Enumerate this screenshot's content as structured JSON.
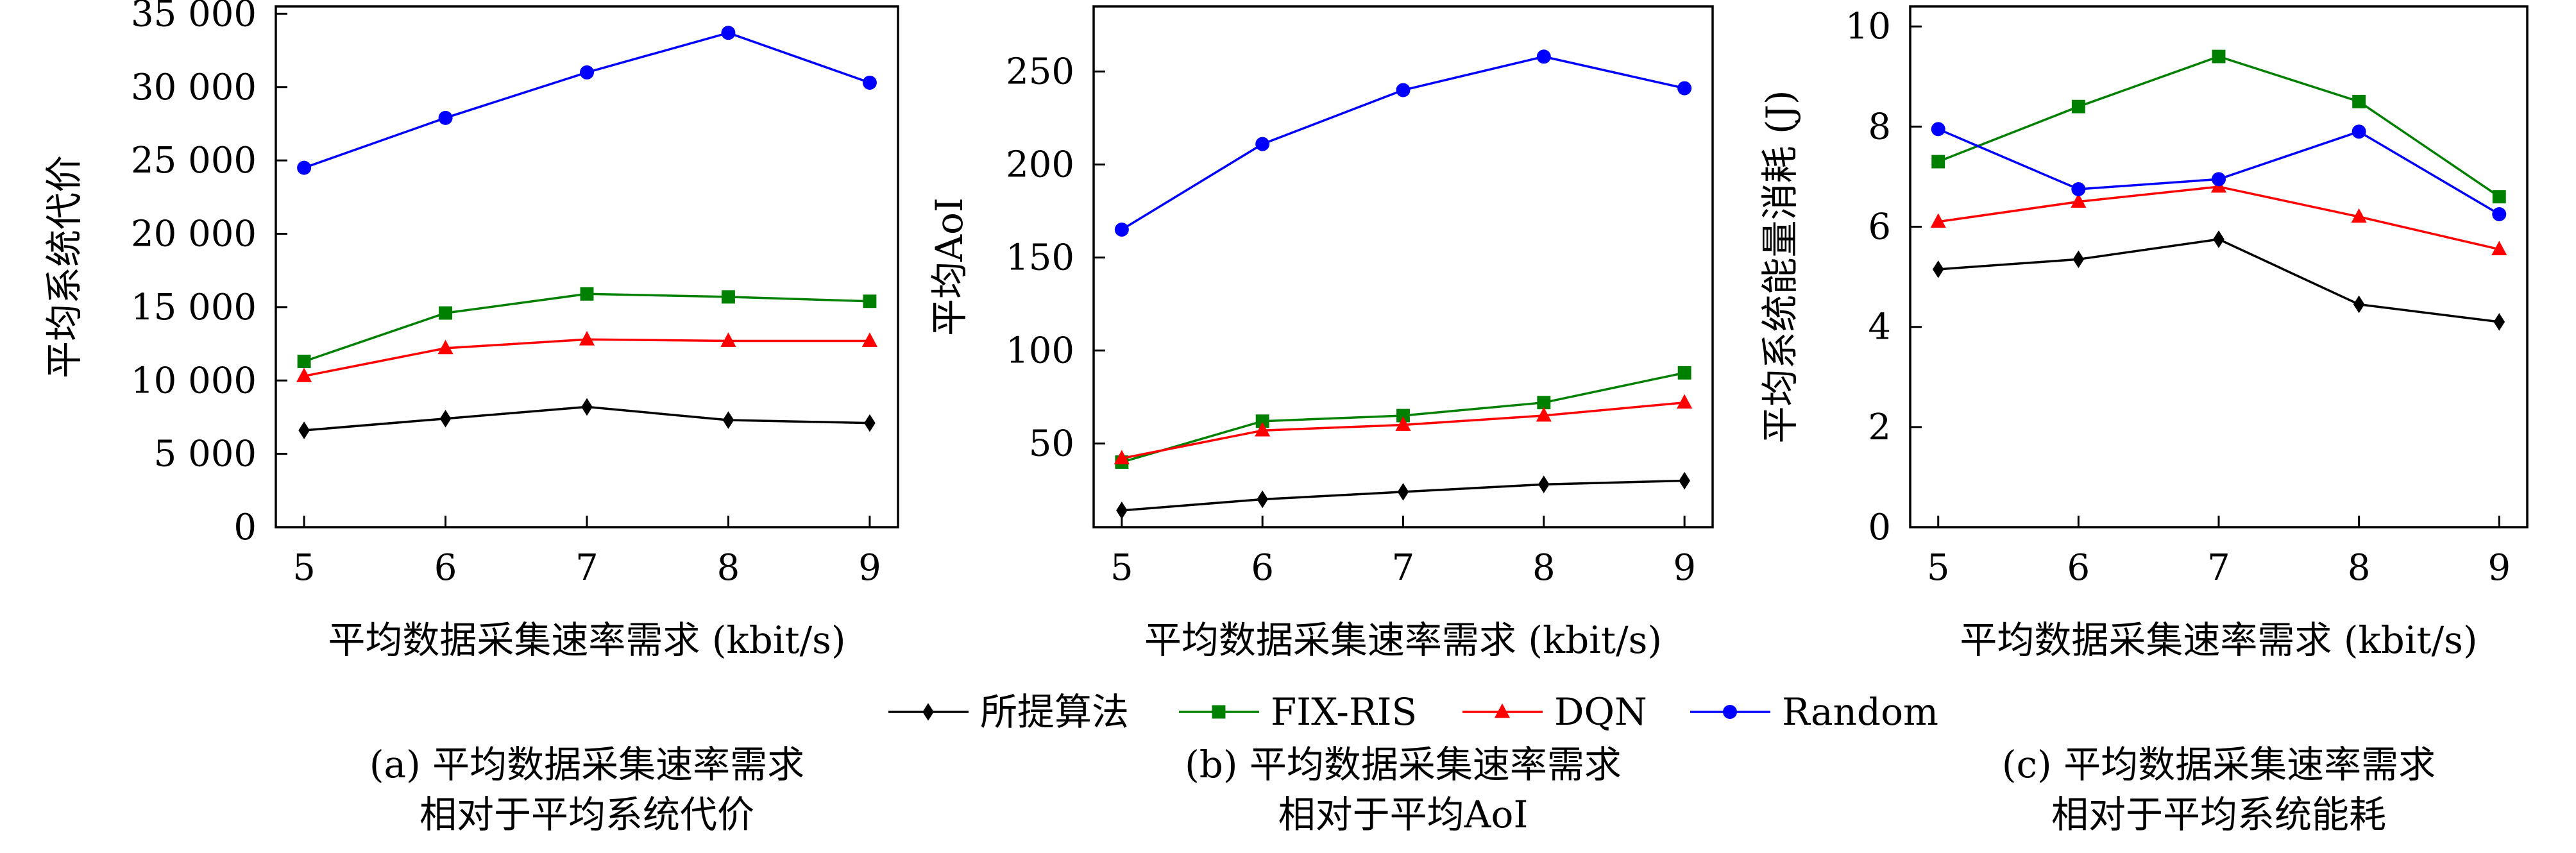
{
  "legend": {
    "placement": "bottom-center",
    "entries": [
      {
        "name": "所提算法",
        "color": "#000000",
        "marker": "diamond"
      },
      {
        "name": "FIX-RIS",
        "color": "#008000",
        "marker": "square"
      },
      {
        "name": "DQN",
        "color": "#ff0000",
        "marker": "triangle"
      },
      {
        "name": "Random",
        "color": "#0000ff",
        "marker": "circle"
      }
    ]
  },
  "chart_data": [
    {
      "type": "line",
      "caption_line1": "(a) 平均数据采集速率需求",
      "caption_line2": "相对于平均系统代价",
      "xlabel": "平均数据采集速率需求 (kbit/s)",
      "ylabel": "平均系统代价",
      "x": [
        5,
        6,
        7,
        8,
        9
      ],
      "xlim": [
        4.8,
        9.2
      ],
      "ylim": [
        0,
        35500
      ],
      "yticks": [
        0,
        5000,
        10000,
        15000,
        20000,
        25000,
        30000,
        35000
      ],
      "ytick_labels": [
        "0",
        "5 000",
        "10 000",
        "15 000",
        "20 000",
        "25 000",
        "30 000",
        "35 000"
      ],
      "xtick_labels": [
        "5",
        "6",
        "7",
        "8",
        "9"
      ],
      "grid": false,
      "series": [
        {
          "name": "所提算法",
          "values": [
            6600,
            7400,
            8200,
            7300,
            7100
          ]
        },
        {
          "name": "FIX-RIS",
          "values": [
            11300,
            14600,
            15900,
            15700,
            15400
          ]
        },
        {
          "name": "DQN",
          "values": [
            10300,
            12200,
            12800,
            12700,
            12700
          ]
        },
        {
          "name": "Random",
          "values": [
            24500,
            27900,
            31000,
            33700,
            30300
          ]
        }
      ]
    },
    {
      "type": "line",
      "caption_line1": "(b) 平均数据采集速率需求",
      "caption_line2": "相对于平均AoI",
      "xlabel": "平均数据采集速率需求 (kbit/s)",
      "ylabel": "平均AoI",
      "x": [
        5,
        6,
        7,
        8,
        9
      ],
      "xlim": [
        4.8,
        9.2
      ],
      "ylim": [
        5,
        285
      ],
      "yticks": [
        50,
        100,
        150,
        200,
        250
      ],
      "ytick_labels": [
        "50",
        "100",
        "150",
        "200",
        "250"
      ],
      "xtick_labels": [
        "5",
        "6",
        "7",
        "8",
        "9"
      ],
      "grid": false,
      "series": [
        {
          "name": "所提算法",
          "values": [
            14,
            20,
            24,
            28,
            30
          ]
        },
        {
          "name": "FIX-RIS",
          "values": [
            40,
            62,
            65,
            72,
            88
          ]
        },
        {
          "name": "DQN",
          "values": [
            42,
            57,
            60,
            65,
            72
          ]
        },
        {
          "name": "Random",
          "values": [
            165,
            211,
            240,
            258,
            241
          ]
        }
      ]
    },
    {
      "type": "line",
      "caption_line1": "(c) 平均数据采集速率需求",
      "caption_line2": "相对于平均系统能耗",
      "xlabel": "平均数据采集速率需求 (kbit/s)",
      "ylabel": "平均系统能量消耗 (J)",
      "x": [
        5,
        6,
        7,
        8,
        9
      ],
      "xlim": [
        4.8,
        9.2
      ],
      "ylim": [
        0,
        10.4
      ],
      "yticks": [
        0,
        2,
        4,
        6,
        8,
        10
      ],
      "ytick_labels": [
        "0",
        "2",
        "4",
        "6",
        "8",
        "10"
      ],
      "xtick_labels": [
        "5",
        "6",
        "7",
        "8",
        "9"
      ],
      "grid": false,
      "series": [
        {
          "name": "所提算法",
          "values": [
            5.15,
            5.35,
            5.75,
            4.45,
            4.1
          ]
        },
        {
          "name": "FIX-RIS",
          "values": [
            7.3,
            8.4,
            9.4,
            8.5,
            6.6
          ]
        },
        {
          "name": "DQN",
          "values": [
            6.1,
            6.5,
            6.8,
            6.2,
            5.55
          ]
        },
        {
          "name": "Random",
          "values": [
            7.95,
            6.75,
            6.95,
            7.9,
            6.25
          ]
        }
      ]
    }
  ]
}
